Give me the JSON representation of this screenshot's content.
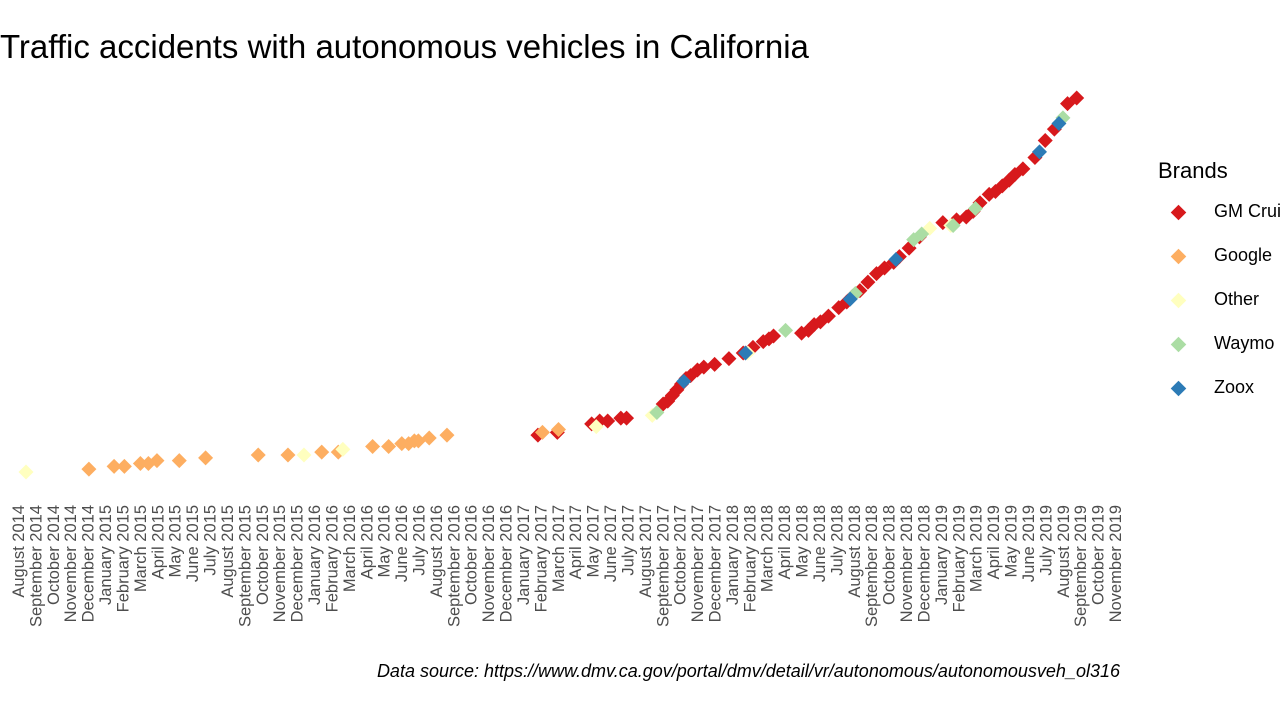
{
  "chart_data": {
    "type": "scatter",
    "title": "Traffic accidents with autonomous vehicles in California",
    "caption": "Data source: https://www.dmv.ca.gov/portal/dmv/detail/vr/autonomous/autonomousveh_ol316",
    "xlabel": "",
    "ylabel": "",
    "legend_title": "Brands",
    "legend_position": "right",
    "grid": false,
    "xlim": [
      "2014-08",
      "2019-11"
    ],
    "y_description": "cumulative accident count (axis not shown)",
    "x_ticks": [
      "August 2014",
      "September 2014",
      "October 2014",
      "November 2014",
      "December 2014",
      "January 2015",
      "February 2015",
      "March 2015",
      "April 2015",
      "May 2015",
      "June 2015",
      "July 2015",
      "August 2015",
      "September 2015",
      "October 2015",
      "November 2015",
      "December 2015",
      "January 2016",
      "February 2016",
      "March 2016",
      "April 2016",
      "May 2016",
      "June 2016",
      "July 2016",
      "August 2016",
      "September 2016",
      "October 2016",
      "November 2016",
      "December 2016",
      "January 2017",
      "February 2017",
      "March 2017",
      "April 2017",
      "May 2017",
      "June 2017",
      "July 2017",
      "August 2017",
      "September 2017",
      "October 2017",
      "November 2017",
      "December 2017",
      "January 2018",
      "February 2018",
      "March 2018",
      "April 2018",
      "May 2018",
      "June 2018",
      "July 2018",
      "August 2018",
      "September 2018",
      "October 2018",
      "November 2018",
      "December 2018",
      "January 2019",
      "February 2019",
      "March 2019",
      "April 2019",
      "May 2019",
      "June 2019",
      "July 2019",
      "August 2019",
      "September 2019",
      "October 2019",
      "November 2019"
    ],
    "series": [
      {
        "name": "GM Cruise",
        "color": "#d7191c",
        "points": [
          [
            "2017-01-26",
            13
          ],
          [
            "2017-03-01",
            14
          ],
          [
            "2017-04-30",
            17
          ],
          [
            "2017-05-14",
            18
          ],
          [
            "2017-05-28",
            18
          ],
          [
            "2017-06-20",
            19
          ],
          [
            "2017-06-30",
            19
          ],
          [
            "2017-09-02",
            24
          ],
          [
            "2017-09-10",
            25
          ],
          [
            "2017-09-18",
            27
          ],
          [
            "2017-09-26",
            29
          ],
          [
            "2017-10-04",
            31
          ],
          [
            "2017-10-12",
            33
          ],
          [
            "2017-10-20",
            34
          ],
          [
            "2017-11-01",
            36
          ],
          [
            "2017-11-12",
            37
          ],
          [
            "2017-12-01",
            38
          ],
          [
            "2017-12-26",
            40
          ],
          [
            "2018-01-20",
            42
          ],
          [
            "2018-02-06",
            44
          ],
          [
            "2018-02-24",
            46
          ],
          [
            "2018-03-06",
            47
          ],
          [
            "2018-03-14",
            48
          ],
          [
            "2018-05-02",
            49
          ],
          [
            "2018-05-14",
            50
          ],
          [
            "2018-05-24",
            52
          ],
          [
            "2018-06-04",
            53
          ],
          [
            "2018-06-18",
            55
          ],
          [
            "2018-07-06",
            58
          ],
          [
            "2018-07-20",
            60
          ],
          [
            "2018-07-30",
            62
          ],
          [
            "2018-08-12",
            64
          ],
          [
            "2018-08-26",
            67
          ],
          [
            "2018-09-10",
            70
          ],
          [
            "2018-09-24",
            72
          ],
          [
            "2018-10-10",
            74
          ],
          [
            "2018-10-20",
            76
          ],
          [
            "2018-11-06",
            79
          ],
          [
            "2018-11-24",
            83
          ],
          [
            "2019-01-04",
            88
          ],
          [
            "2019-01-28",
            89
          ],
          [
            "2019-02-14",
            90
          ],
          [
            "2019-02-26",
            92
          ],
          [
            "2019-03-10",
            95
          ],
          [
            "2019-03-26",
            98
          ],
          [
            "2019-04-06",
            99
          ],
          [
            "2019-04-18",
            101
          ],
          [
            "2019-04-30",
            103
          ],
          [
            "2019-05-10",
            105
          ],
          [
            "2019-05-24",
            107
          ],
          [
            "2019-06-14",
            111
          ],
          [
            "2019-07-02",
            117
          ],
          [
            "2019-07-18",
            121
          ],
          [
            "2019-08-10",
            130
          ],
          [
            "2019-08-26",
            132
          ]
        ]
      },
      {
        "name": "Google",
        "color": "#fdae61",
        "points": [
          [
            "2014-12-03",
            1
          ],
          [
            "2015-01-16",
            2
          ],
          [
            "2015-02-03",
            2
          ],
          [
            "2015-03-03",
            3
          ],
          [
            "2015-03-17",
            3
          ],
          [
            "2015-04-01",
            4
          ],
          [
            "2015-05-10",
            4
          ],
          [
            "2015-06-25",
            5
          ],
          [
            "2015-09-25",
            6
          ],
          [
            "2015-11-16",
            6
          ],
          [
            "2016-01-14",
            7
          ],
          [
            "2016-02-12",
            7
          ],
          [
            "2016-04-12",
            9
          ],
          [
            "2016-05-10",
            9
          ],
          [
            "2016-06-02",
            10
          ],
          [
            "2016-06-14",
            10
          ],
          [
            "2016-06-24",
            11
          ],
          [
            "2016-07-01",
            11
          ],
          [
            "2016-07-20",
            12
          ],
          [
            "2016-08-20",
            13
          ],
          [
            "2017-02-03",
            14
          ],
          [
            "2017-03-03",
            15
          ]
        ]
      },
      {
        "name": "Other",
        "color": "#ffffbf",
        "points": [
          [
            "2014-08-15",
            0
          ],
          [
            "2015-12-14",
            6
          ],
          [
            "2016-02-20",
            8
          ],
          [
            "2017-05-08",
            16
          ],
          [
            "2017-08-14",
            20
          ],
          [
            "2018-01-28",
            42
          ],
          [
            "2018-12-12",
            86
          ],
          [
            "2019-01-18",
            87
          ]
        ]
      },
      {
        "name": "Waymo",
        "color": "#abdda4",
        "points": [
          [
            "2017-08-22",
            21
          ],
          [
            "2018-04-04",
            50
          ],
          [
            "2018-08-04",
            63
          ],
          [
            "2018-11-14",
            82
          ],
          [
            "2018-11-28",
            84
          ],
          [
            "2019-01-22",
            87
          ],
          [
            "2019-03-02",
            93
          ],
          [
            "2019-08-02",
            125
          ]
        ]
      },
      {
        "name": "Zoox",
        "color": "#2c7bb6",
        "points": [
          [
            "2017-10-08",
            32
          ],
          [
            "2018-01-24",
            42
          ],
          [
            "2018-07-26",
            61
          ],
          [
            "2018-10-14",
            75
          ],
          [
            "2019-06-22",
            113
          ],
          [
            "2019-07-26",
            123
          ]
        ]
      }
    ]
  }
}
